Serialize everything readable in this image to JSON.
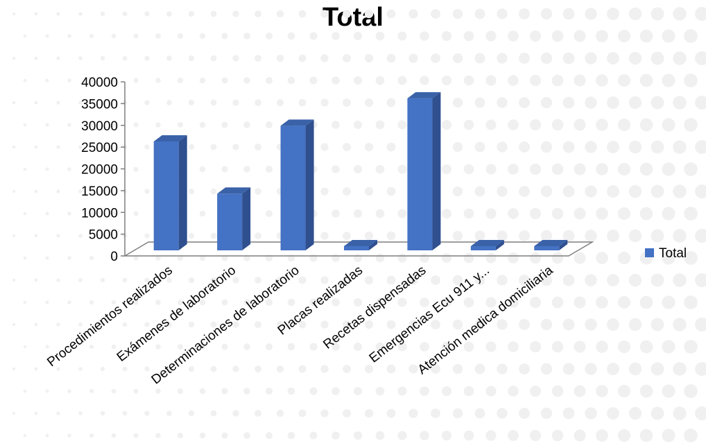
{
  "chart_data": {
    "type": "bar",
    "title": "Total",
    "categories": [
      "Procedimientos realizados",
      "Exámenes de laboratorio",
      "Determinaciones de laboratorio",
      "Placas realizadas",
      "Recetas dispensadas",
      "Emergencias Ecu 911 y...",
      "Atención medica domiciliaria"
    ],
    "series": [
      {
        "name": "Total",
        "values": [
          26300,
          14300,
          29900,
          1400,
          36200,
          200,
          2000
        ]
      }
    ],
    "ylim": [
      0,
      40000
    ],
    "yticks": [
      0,
      5000,
      10000,
      15000,
      20000,
      25000,
      30000,
      35000,
      40000
    ],
    "grid": false,
    "legend": "right",
    "colors": {
      "bar_front": "#4472C4",
      "bar_side": "#2F4F8F",
      "bar_top": "#3A62A8",
      "floor": "#7f7f7f",
      "background_dots": "#f0f0f0"
    }
  }
}
